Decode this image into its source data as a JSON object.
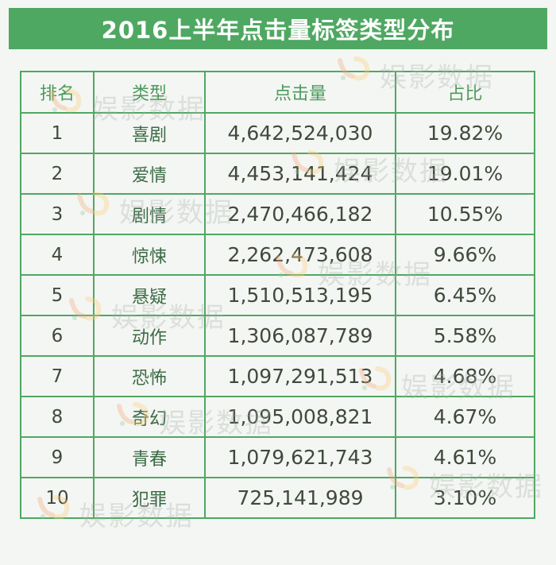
{
  "title": "2016上半年点击量标签类型分布",
  "table": {
    "headers": [
      "排名",
      "类型",
      "点击量",
      "占比"
    ],
    "rows": [
      {
        "rank": "1",
        "type": "喜剧",
        "clicks": "4,642,524,030",
        "share": "19.82%"
      },
      {
        "rank": "2",
        "type": "爱情",
        "clicks": "4,453,141,424",
        "share": "19.01%"
      },
      {
        "rank": "3",
        "type": "剧情",
        "clicks": "2,470,466,182",
        "share": "10.55%"
      },
      {
        "rank": "4",
        "type": "惊悚",
        "clicks": "2,262,473,608",
        "share": "9.66%"
      },
      {
        "rank": "5",
        "type": "悬疑",
        "clicks": "1,510,513,195",
        "share": "6.45%"
      },
      {
        "rank": "6",
        "type": "动作",
        "clicks": "1,306,087,789",
        "share": "5.58%"
      },
      {
        "rank": "7",
        "type": "恐怖",
        "clicks": "1,097,291,513",
        "share": "4.68%"
      },
      {
        "rank": "8",
        "type": "奇幻",
        "clicks": "1,095,008,821",
        "share": "4.67%"
      },
      {
        "rank": "9",
        "type": "青春",
        "clicks": "1,079,621,743",
        "share": "4.61%"
      },
      {
        "rank": "10",
        "type": "犯罪",
        "clicks": "725,141,989",
        "share": "3.10%"
      }
    ]
  },
  "watermark": {
    "text": "娱影数据"
  },
  "colors": {
    "accent": "#4fa862",
    "header_text": "#4c9a5c",
    "body_text": "#3f4a3c",
    "background": "#f4f6f3"
  }
}
